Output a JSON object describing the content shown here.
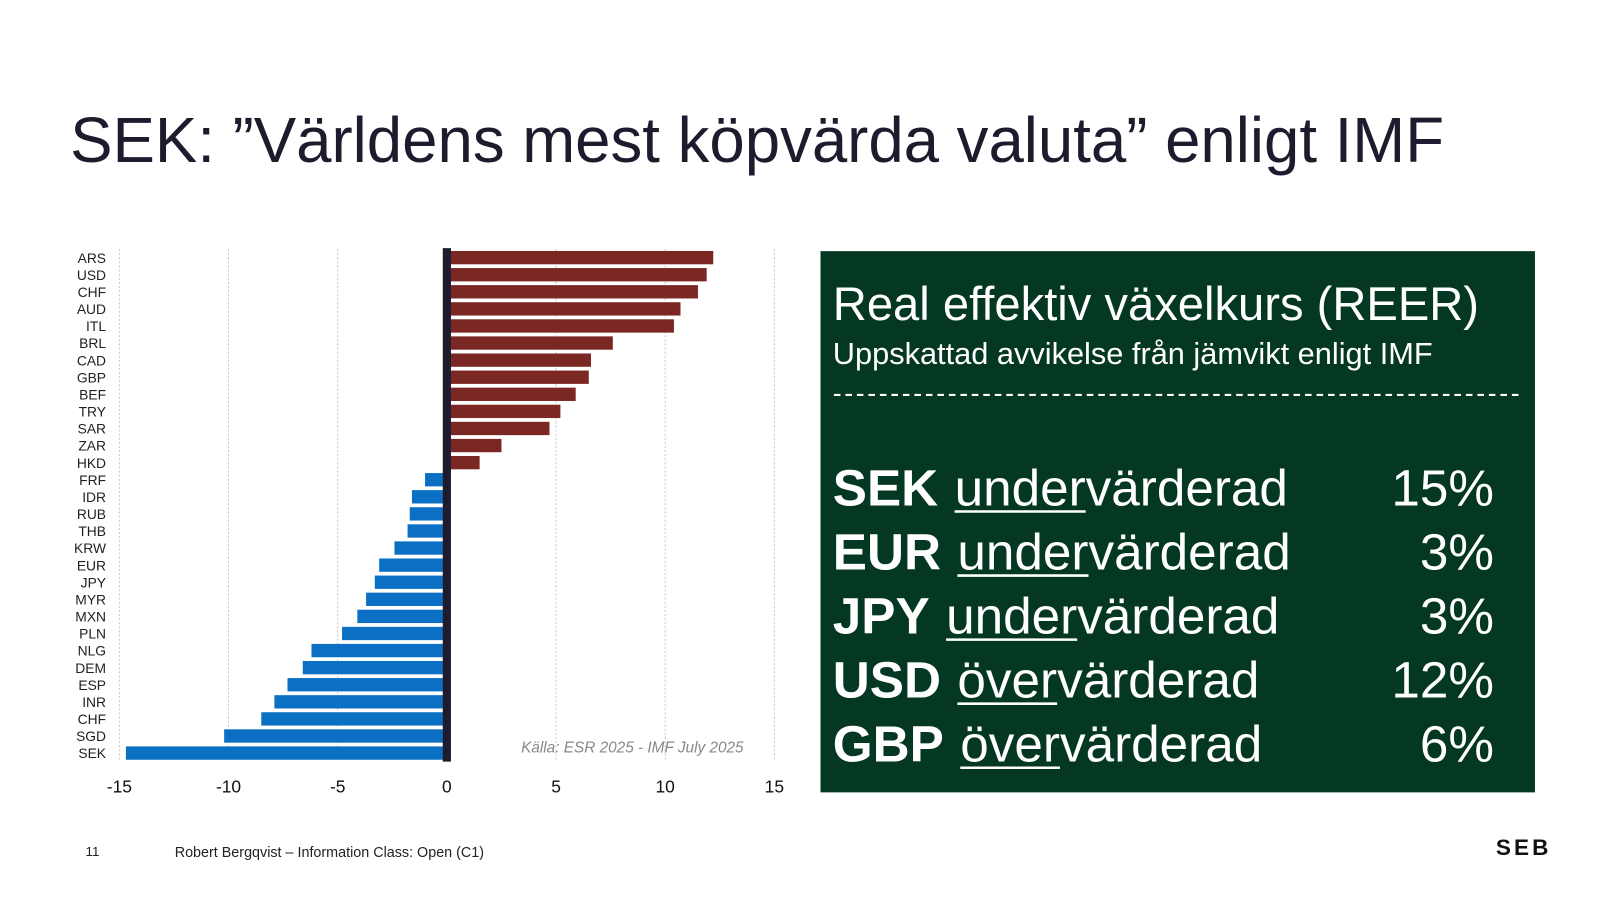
{
  "slide": {
    "title": "SEK: ”Världens mest köpvärda valuta” enligt IMF",
    "page_number": "11",
    "footer": "Robert Bergqvist – Information Class: Open (C1)",
    "logo": "SEB"
  },
  "chart_data": {
    "type": "hbar",
    "categories": [
      "ARS",
      "USD",
      "CHF",
      "AUD",
      "ITL",
      "BRL",
      "CAD",
      "GBP",
      "BEF",
      "TRY",
      "SAR",
      "ZAR",
      "HKD",
      "FRF",
      "IDR",
      "RUB",
      "THB",
      "KRW",
      "EUR",
      "JPY",
      "MYR",
      "MXN",
      "PLN",
      "NLG",
      "DEM",
      "ESP",
      "INR",
      "CHF",
      "SGD",
      "SEK"
    ],
    "values": [
      12.2,
      11.9,
      11.5,
      10.7,
      10.4,
      7.6,
      6.6,
      6.5,
      5.9,
      5.2,
      4.7,
      2.5,
      1.5,
      -1.0,
      -1.6,
      -1.7,
      -1.8,
      -2.4,
      -3.1,
      -3.3,
      -3.7,
      -4.1,
      -4.8,
      -6.2,
      -6.6,
      -7.3,
      -7.9,
      -8.5,
      -10.2,
      -14.7
    ],
    "colors": {
      "positive": "#7b2724",
      "negative": "#0b6fc3"
    },
    "xlim": [
      -15,
      15
    ],
    "xticks": [
      -15,
      -10,
      -5,
      0,
      5,
      10,
      15
    ],
    "grid": true,
    "annotation": "Källa: ESR 2025 - IMF July 2025"
  },
  "panel": {
    "title": "Real effektiv växelkurs (REER)",
    "subtitle": "Uppskattad avvikelse från jämvikt enligt IMF",
    "separator": "------------------------------------------------------------",
    "rows": [
      {
        "code": "SEK",
        "prefix": "under",
        "suffix": "värderad",
        "value": "15%"
      },
      {
        "code": "EUR",
        "prefix": "under",
        "suffix": "värderad",
        "value": "3%"
      },
      {
        "code": "JPY",
        "prefix": "under",
        "suffix": "värderad",
        "value": "3%"
      },
      {
        "code": "USD",
        "prefix": "över",
        "suffix": "värderad",
        "value": "12%"
      },
      {
        "code": "GBP",
        "prefix": "över",
        "suffix": "värderad",
        "value": "6%"
      }
    ]
  }
}
